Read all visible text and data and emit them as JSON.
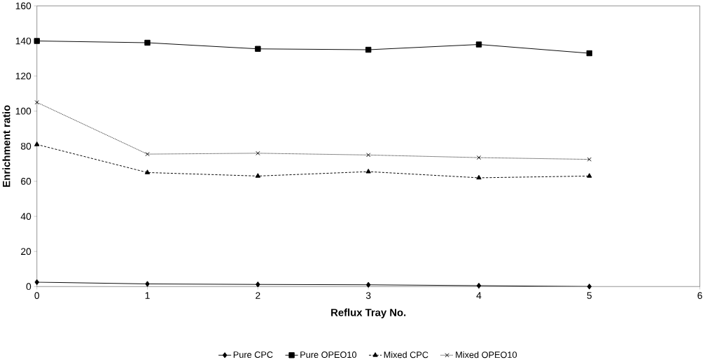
{
  "chart_data": {
    "type": "line",
    "xlabel": "Reflux Tray No.",
    "ylabel": "Enrichment ratio",
    "x": [
      0,
      1,
      2,
      3,
      4,
      5
    ],
    "series": [
      {
        "name": "Pure CPC",
        "color": "#000000",
        "marker": "diamond",
        "line_style": "solid",
        "values": [
          2.5,
          1.5,
          1.2,
          1,
          0.5,
          0
        ]
      },
      {
        "name": "Pure OPEO10",
        "color": "#000000",
        "marker": "square",
        "line_style": "solid",
        "values": [
          140,
          139,
          135.5,
          135,
          138,
          133
        ]
      },
      {
        "name": "Mixed CPC",
        "color": "#000000",
        "marker": "triangle",
        "line_style": "dashed",
        "values": [
          81,
          65,
          63,
          65.5,
          62,
          63
        ]
      },
      {
        "name": "Mixed OPEO10",
        "color": "#000000",
        "marker": "cross",
        "line_style": "dotted",
        "values": [
          105,
          75.5,
          76,
          75,
          73.5,
          72.5
        ]
      }
    ],
    "xlim": [
      0,
      6
    ],
    "ylim": [
      0,
      160
    ],
    "xticks": [
      0,
      1,
      2,
      3,
      4,
      5,
      6
    ],
    "yticks": [
      0,
      20,
      40,
      60,
      80,
      100,
      120,
      140,
      160
    ],
    "grid": false,
    "legend": "bottom"
  }
}
